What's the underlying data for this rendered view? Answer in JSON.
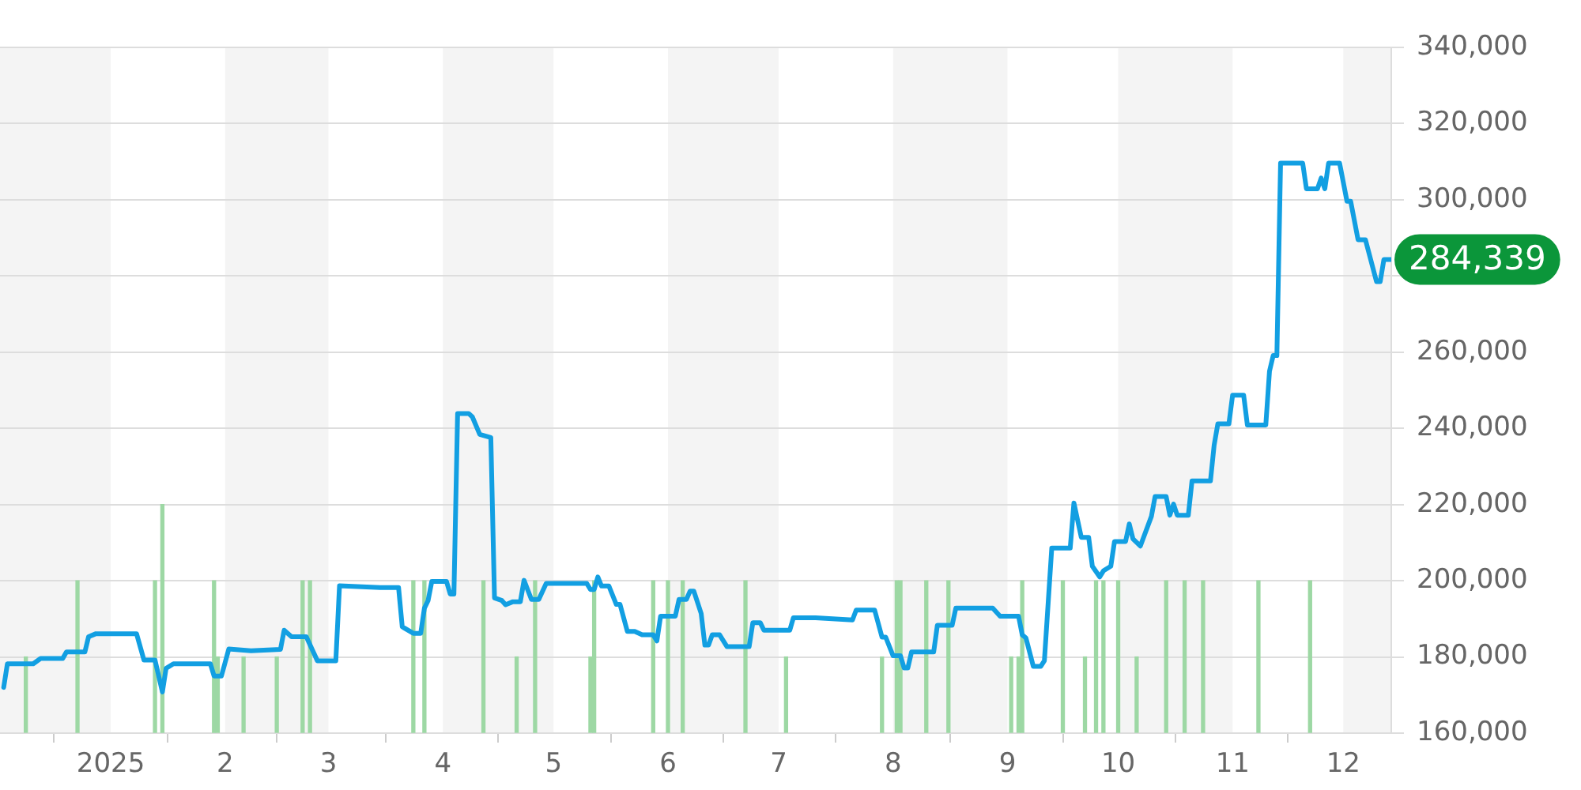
{
  "chart_data": {
    "type": "line",
    "xlim": [
      "2024-12-02",
      "2025-12-14"
    ],
    "xticks": [
      {
        "value": "2025-01-01",
        "label": "2025"
      },
      {
        "value": "2025-02-01",
        "label": "2"
      },
      {
        "value": "2025-03-01",
        "label": "3"
      },
      {
        "value": "2025-04-01",
        "label": "4"
      },
      {
        "value": "2025-05-01",
        "label": "5"
      },
      {
        "value": "2025-06-01",
        "label": "6"
      },
      {
        "value": "2025-07-01",
        "label": "7"
      },
      {
        "value": "2025-08-01",
        "label": "8"
      },
      {
        "value": "2025-09-01",
        "label": "9"
      },
      {
        "value": "2025-10-01",
        "label": "10"
      },
      {
        "value": "2025-11-01",
        "label": "11"
      },
      {
        "value": "2025-12-01",
        "label": "12"
      }
    ],
    "ylim": [
      160000,
      340000
    ],
    "yticks": [
      {
        "value": 160000,
        "label": "160,000"
      },
      {
        "value": 180000,
        "label": "180,000"
      },
      {
        "value": 200000,
        "label": "200,000"
      },
      {
        "value": 220000,
        "label": "220,000"
      },
      {
        "value": 240000,
        "label": "240,000"
      },
      {
        "value": 260000,
        "label": "260,000"
      },
      {
        "value": 280000,
        "label": null
      },
      {
        "value": 300000,
        "label": "300,000"
      },
      {
        "value": 320000,
        "label": "320,000"
      },
      {
        "value": 340000,
        "label": "340,000"
      }
    ],
    "grid": "y",
    "legend": false,
    "marker": "none",
    "line_style": "solid",
    "series": [
      {
        "type": "bar",
        "color": "#9dd8a4",
        "x": [
          "2024-12-09",
          "2024-12-23",
          "2025-01-13",
          "2025-01-15",
          "2025-01-29",
          "2025-01-30",
          "2025-02-06",
          "2025-02-15",
          "2025-02-22",
          "2025-02-24",
          "2025-03-24",
          "2025-03-27",
          "2025-04-12",
          "2025-04-21",
          "2025-04-26",
          "2025-05-11",
          "2025-05-12",
          "2025-05-28",
          "2025-06-01",
          "2025-06-05",
          "2025-06-22",
          "2025-07-03",
          "2025-07-29",
          "2025-08-02",
          "2025-08-03",
          "2025-08-10",
          "2025-08-16",
          "2025-09-02",
          "2025-09-04",
          "2025-09-05",
          "2025-09-16",
          "2025-09-22",
          "2025-09-25",
          "2025-09-27",
          "2025-10-01",
          "2025-10-06",
          "2025-10-14",
          "2025-10-19",
          "2025-10-24",
          "2025-11-08",
          "2025-11-22"
        ],
        "values": [
          180000,
          200000,
          200000,
          220000,
          200000,
          180000,
          180000,
          180000,
          200000,
          200000,
          200000,
          200000,
          200000,
          180000,
          200000,
          180000,
          200000,
          200000,
          200000,
          200000,
          200000,
          180000,
          180000,
          200000,
          200000,
          200000,
          200000,
          180000,
          180000,
          200000,
          200000,
          180000,
          200000,
          200000,
          200000,
          180000,
          200000,
          200000,
          200000,
          200000,
          200000
        ]
      },
      {
        "color": "#129fe2",
        "x": [
          "2024-12-03",
          "2024-12-04",
          "2024-12-11",
          "2024-12-13",
          "2024-12-19",
          "2024-12-20",
          "2024-12-25",
          "2024-12-26",
          "2024-12-28",
          "2025-01-08",
          "2025-01-10",
          "2025-01-13",
          "2025-01-15",
          "2025-01-16",
          "2025-01-18",
          "2025-01-28",
          "2025-01-29",
          "2025-01-31",
          "2025-02-02",
          "2025-02-08",
          "2025-02-16",
          "2025-02-17",
          "2025-02-19",
          "2025-02-23",
          "2025-02-25",
          "2025-02-26",
          "2025-03-03",
          "2025-03-04",
          "2025-03-15",
          "2025-03-20",
          "2025-03-21",
          "2025-03-24",
          "2025-03-26",
          "2025-03-27",
          "2025-03-28",
          "2025-03-29",
          "2025-04-02",
          "2025-04-03",
          "2025-04-04",
          "2025-04-05",
          "2025-04-08",
          "2025-04-09",
          "2025-04-11",
          "2025-04-14",
          "2025-04-15",
          "2025-04-17",
          "2025-04-18",
          "2025-04-20",
          "2025-04-22",
          "2025-04-23",
          "2025-04-25",
          "2025-04-27",
          "2025-04-29",
          "2025-05-10",
          "2025-05-11",
          "2025-05-12",
          "2025-05-13",
          "2025-05-14",
          "2025-05-16",
          "2025-05-18",
          "2025-05-19",
          "2025-05-21",
          "2025-05-23",
          "2025-05-25",
          "2025-05-28",
          "2025-05-29",
          "2025-05-30",
          "2025-06-03",
          "2025-06-04",
          "2025-06-06",
          "2025-06-07",
          "2025-06-08",
          "2025-06-10",
          "2025-06-11",
          "2025-06-12",
          "2025-06-13",
          "2025-06-15",
          "2025-06-17",
          "2025-06-23",
          "2025-06-24",
          "2025-06-26",
          "2025-06-27",
          "2025-07-04",
          "2025-07-05",
          "2025-07-11",
          "2025-07-21",
          "2025-07-22",
          "2025-07-27",
          "2025-07-29",
          "2025-07-30",
          "2025-08-01",
          "2025-08-03",
          "2025-08-04",
          "2025-08-05",
          "2025-08-06",
          "2025-08-12",
          "2025-08-13",
          "2025-08-17",
          "2025-08-18",
          "2025-08-28",
          "2025-08-30",
          "2025-09-04",
          "2025-09-05",
          "2025-09-06",
          "2025-09-08",
          "2025-09-10",
          "2025-09-11",
          "2025-09-13",
          "2025-09-18",
          "2025-09-19",
          "2025-09-21",
          "2025-09-23",
          "2025-09-24",
          "2025-09-26",
          "2025-09-27",
          "2025-09-29",
          "2025-09-30",
          "2025-10-03",
          "2025-10-04",
          "2025-10-05",
          "2025-10-07",
          "2025-10-10",
          "2025-10-11",
          "2025-10-14",
          "2025-10-15",
          "2025-10-16",
          "2025-10-17",
          "2025-10-20",
          "2025-10-21",
          "2025-10-26",
          "2025-10-27",
          "2025-10-28",
          "2025-10-31",
          "2025-11-01",
          "2025-11-04",
          "2025-11-05",
          "2025-11-10",
          "2025-11-11",
          "2025-11-12",
          "2025-11-13",
          "2025-11-14",
          "2025-11-20",
          "2025-11-21",
          "2025-11-24",
          "2025-11-25",
          "2025-11-26",
          "2025-11-27",
          "2025-11-30",
          "2025-12-02",
          "2025-12-03",
          "2025-12-05",
          "2025-12-07",
          "2025-12-10",
          "2025-12-11",
          "2025-12-12",
          "2025-12-14"
        ],
        "values": [
          172000,
          178200,
          178200,
          179600,
          179600,
          181300,
          181300,
          185300,
          186100,
          186100,
          179200,
          179200,
          170800,
          177000,
          178200,
          178200,
          175000,
          175000,
          182100,
          181600,
          182000,
          187000,
          185300,
          185300,
          181100,
          179000,
          179000,
          198700,
          198200,
          198200,
          187900,
          186200,
          186200,
          192800,
          194800,
          199800,
          199800,
          196500,
          196500,
          243900,
          243900,
          243000,
          238400,
          237600,
          195500,
          194800,
          193700,
          194500,
          194500,
          200100,
          195100,
          195100,
          199300,
          199300,
          197700,
          197700,
          201000,
          198600,
          198600,
          193800,
          193800,
          186700,
          186700,
          185800,
          185800,
          184200,
          190700,
          190700,
          195100,
          195100,
          197300,
          197300,
          191400,
          183100,
          183100,
          185800,
          185800,
          182700,
          182700,
          189000,
          189000,
          187000,
          187000,
          190300,
          190300,
          189700,
          192300,
          192300,
          185200,
          185200,
          180300,
          180300,
          177100,
          177100,
          181300,
          181300,
          188300,
          188300,
          192800,
          192800,
          190700,
          190700,
          185800,
          185000,
          177500,
          177500,
          179000,
          208600,
          208600,
          220400,
          211400,
          211400,
          203800,
          201000,
          202600,
          203800,
          210300,
          210300,
          214900,
          211000,
          209100,
          216900,
          222100,
          222100,
          217200,
          220100,
          217200,
          217200,
          226200,
          226200,
          235600,
          241200,
          241200,
          248700,
          248700,
          240900,
          240900,
          255000,
          259100,
          259100,
          309600,
          309600,
          302900,
          302900,
          305700,
          302900,
          309600,
          309600,
          299600,
          299600,
          289500,
          289500,
          278500,
          278500,
          284339,
          284339
        ]
      }
    ],
    "bands": [
      {
        "axis": "x",
        "from": "2024-12-02",
        "to": "2025-01-01",
        "color": "#f4f4f4"
      },
      {
        "axis": "x",
        "from": "2025-02-01",
        "to": "2025-03-01",
        "color": "#f4f4f4"
      },
      {
        "axis": "x",
        "from": "2025-04-01",
        "to": "2025-05-01",
        "color": "#f4f4f4"
      },
      {
        "axis": "x",
        "from": "2025-06-01",
        "to": "2025-07-01",
        "color": "#f4f4f4"
      },
      {
        "axis": "x",
        "from": "2025-08-01",
        "to": "2025-09-01",
        "color": "#f4f4f4"
      },
      {
        "axis": "x",
        "from": "2025-10-01",
        "to": "2025-11-01",
        "color": "#f4f4f4"
      },
      {
        "axis": "x",
        "from": "2025-12-01",
        "to": "2025-12-14",
        "color": "#f4f4f4"
      }
    ],
    "annotations": [
      {
        "text": "284,339",
        "x": "2025-12-14",
        "y": 284339
      }
    ]
  }
}
